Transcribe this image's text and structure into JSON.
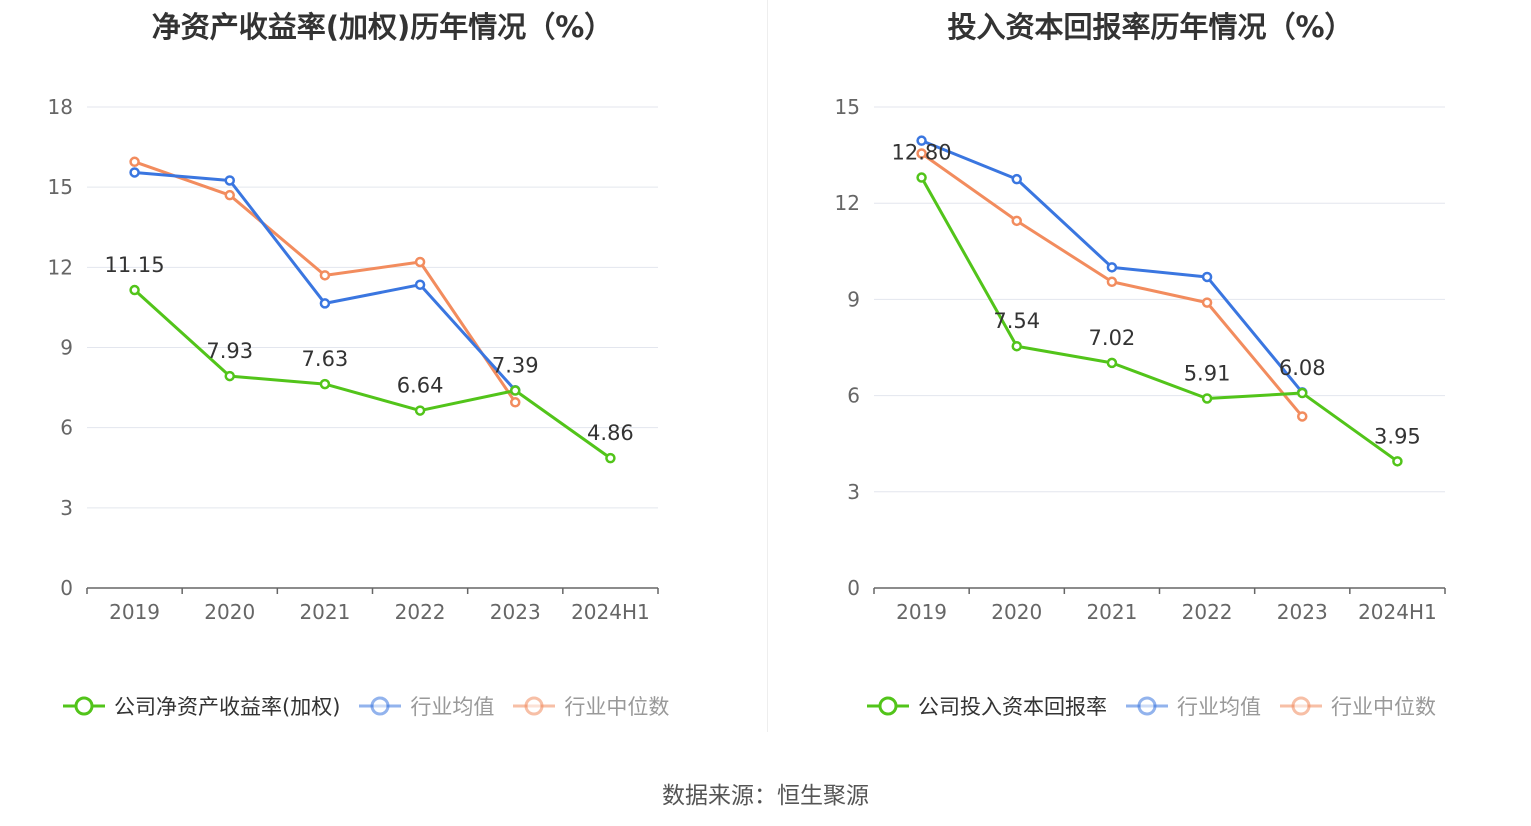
{
  "chart_data": [
    {
      "type": "line",
      "title": "净资产收益率(加权)历年情况（%）",
      "categories": [
        "2019",
        "2020",
        "2021",
        "2022",
        "2023",
        "2024H1"
      ],
      "ylim": [
        0,
        18
      ],
      "yticks": [
        "0",
        "3",
        "6",
        "9",
        "12",
        "15",
        "18"
      ],
      "grid": true,
      "legend_position": "bottom",
      "series": [
        {
          "name": "公司净资产收益率(加权)",
          "color": "#52c41a",
          "values": [
            11.15,
            7.93,
            7.63,
            6.64,
            7.39,
            4.86
          ],
          "labels": [
            "11.15",
            "7.93",
            "7.63",
            "6.64",
            "7.39",
            "4.86"
          ]
        },
        {
          "name": "行业均值",
          "color": "#3a76e0",
          "values": [
            15.55,
            15.25,
            10.65,
            11.35,
            7.4,
            null
          ]
        },
        {
          "name": "行业中位数",
          "color": "#f28c5e",
          "values": [
            15.95,
            14.7,
            11.7,
            12.2,
            6.95,
            null
          ]
        }
      ]
    },
    {
      "type": "line",
      "title": "投入资本回报率历年情况（%）",
      "categories": [
        "2019",
        "2020",
        "2021",
        "2022",
        "2023",
        "2024H1"
      ],
      "ylim": [
        0,
        15
      ],
      "yticks": [
        "0",
        "3",
        "6",
        "9",
        "12",
        "15"
      ],
      "grid": true,
      "legend_position": "bottom",
      "series": [
        {
          "name": "公司投入资本回报率",
          "color": "#52c41a",
          "values": [
            12.8,
            7.54,
            7.02,
            5.91,
            6.08,
            3.95
          ],
          "labels": [
            "12.80",
            "7.54",
            "7.02",
            "5.91",
            "6.08",
            "3.95"
          ]
        },
        {
          "name": "行业均值",
          "color": "#3a76e0",
          "values": [
            13.95,
            12.75,
            10.0,
            9.7,
            6.1,
            null
          ]
        },
        {
          "name": "行业中位数",
          "color": "#f28c5e",
          "values": [
            13.55,
            11.45,
            9.55,
            8.9,
            5.35,
            null
          ]
        }
      ]
    }
  ],
  "footer": {
    "source": "数据来源：恒生聚源"
  }
}
